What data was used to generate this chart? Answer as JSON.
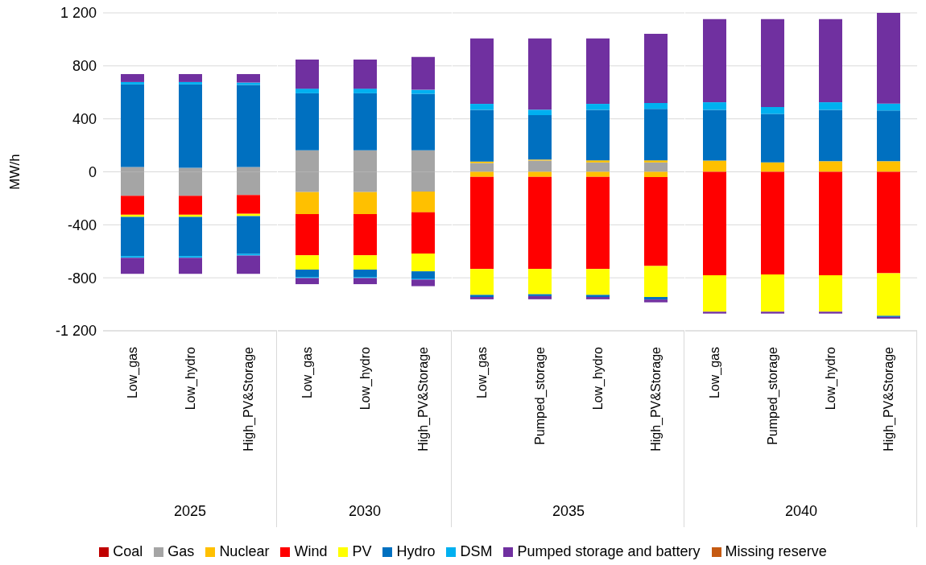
{
  "chart_data": [
    {
      "type": "bar",
      "stacked": true,
      "xlabel": "2025",
      "ylabel": "MW/h",
      "grid": "y",
      "legend": "bottom",
      "tick_labels": true,
      "ylim": [
        -1200,
        1200
      ],
      "yticks": [
        {
          "value": -1200,
          "label": "-1 200"
        },
        -800,
        -400,
        0,
        400,
        800,
        {
          "value": 1200,
          "label": "1 200"
        }
      ],
      "categories": [
        "Low_gas",
        "Low_hydro",
        "High_PV&Storage"
      ],
      "series": [
        {
          "name": "Coal",
          "color": "#c00000",
          "values": [
            null,
            null,
            null
          ]
        },
        {
          "name": "Gas",
          "color": "#a5a5a5",
          "values": [
            37,
            30,
            37
          ]
        },
        {
          "color": "#a5a5a5",
          "values": [
            -181,
            -181,
            -175
          ]
        },
        {
          "name": "Nuclear",
          "color": "#ffc000",
          "values": [
            null,
            null,
            null
          ]
        },
        {
          "name": "Wind",
          "color": "#ff0000",
          "values": [
            -143,
            -143,
            -142
          ]
        },
        {
          "name": "PV",
          "color": "#ffff00",
          "values": [
            -17,
            -17,
            -17
          ]
        },
        {
          "name": "Hydro",
          "color": "#0070c0",
          "values": [
            623,
            630,
            619
          ]
        },
        {
          "color": "#0070c0",
          "values": [
            -295,
            -295,
            -285
          ]
        },
        {
          "name": "DSM",
          "color": "#00b0f0",
          "values": [
            18,
            18,
            18
          ]
        },
        {
          "color": "#00b0f0",
          "values": [
            -13,
            -13,
            -13
          ]
        },
        {
          "name": "Pumped storage and battery",
          "color": "#7030a0",
          "values": [
            60,
            60,
            64
          ]
        },
        {
          "color": "#7030a0",
          "values": [
            -121,
            -121,
            -138
          ]
        },
        {
          "name": "Missing reserve",
          "color": "#c55a11",
          "values": [
            null,
            null,
            null
          ]
        }
      ]
    },
    {
      "type": "bar",
      "stacked": true,
      "xlabel": "2030",
      "grid": "y",
      "tick_labels": "x",
      "ylim": [
        -1200,
        1200
      ],
      "yticks": [
        -1200,
        -800,
        -400,
        0,
        400,
        800,
        1200
      ],
      "categories": [
        "Low_gas",
        "Low_hydro",
        "High_PV&Storage"
      ],
      "series": [
        {
          "color": "#a5a5a5",
          "values": [
            162,
            162,
            162
          ]
        },
        {
          "color": "#a5a5a5",
          "values": [
            -153,
            -153,
            -149
          ]
        },
        {
          "color": "#ffc000",
          "values": [
            -166,
            -166,
            -157
          ]
        },
        {
          "color": "#ff0000",
          "values": [
            -311,
            -311,
            -311
          ]
        },
        {
          "color": "#ffff00",
          "values": [
            -108,
            -108,
            -134
          ]
        },
        {
          "color": "#0070c0",
          "values": [
            431,
            431,
            427
          ]
        },
        {
          "color": "#0070c0",
          "values": [
            -56,
            -56,
            -54
          ]
        },
        {
          "color": "#00b0f0",
          "values": [
            35,
            35,
            30
          ]
        },
        {
          "color": "#00b0f0",
          "values": [
            -8,
            -8,
            -8
          ]
        },
        {
          "color": "#7030a0",
          "values": [
            220,
            220,
            248
          ]
        },
        {
          "color": "#7030a0",
          "values": [
            -46,
            -46,
            -50
          ]
        }
      ]
    },
    {
      "type": "bar",
      "stacked": true,
      "xlabel": "2035",
      "grid": "y",
      "tick_labels": "x",
      "ylim": [
        -1200,
        1200
      ],
      "yticks": [
        -1200,
        -800,
        -400,
        0,
        400,
        800,
        1200
      ],
      "categories": [
        "Low_gas",
        "Pumped_storage",
        "Low_hydro",
        "High_PV&Storage"
      ],
      "series": [
        {
          "color": "#a5a5a5",
          "values": [
            66,
            85,
            71,
            71
          ]
        },
        {
          "color": "#ffc000",
          "values": [
            12,
            7,
            16,
            16
          ]
        },
        {
          "color": "#ffc000",
          "values": [
            -38,
            -38,
            -38,
            -40
          ]
        },
        {
          "color": "#ff0000",
          "values": [
            -695,
            -695,
            -695,
            -671
          ]
        },
        {
          "color": "#ffff00",
          "values": [
            -196,
            -191,
            -196,
            -234
          ]
        },
        {
          "color": "#0070c0",
          "values": [
            390,
            336,
            381,
            388
          ]
        },
        {
          "color": "#0070c0",
          "values": [
            -16,
            -14,
            -16,
            -19
          ]
        },
        {
          "color": "#00b0f0",
          "values": [
            45,
            41,
            45,
            45
          ]
        },
        {
          "color": "#7030a0",
          "values": [
            494,
            538,
            494,
            522
          ]
        },
        {
          "color": "#7030a0",
          "values": [
            -17,
            -24,
            -17,
            -21
          ]
        }
      ]
    },
    {
      "type": "bar",
      "stacked": true,
      "xlabel": "2040",
      "grid": "y",
      "tick_labels": "x",
      "ylim": [
        -1200,
        1200
      ],
      "yticks": [
        -1200,
        -800,
        -400,
        0,
        400,
        800,
        1200
      ],
      "categories": [
        "Low_gas",
        "Pumped_storage",
        "Low_hydro",
        "High_PV&Storage"
      ],
      "series": [
        {
          "color": "#ffc000",
          "values": [
            85,
            71,
            80,
            80
          ]
        },
        {
          "color": "#ff0000",
          "values": [
            -780,
            -775,
            -780,
            -766
          ]
        },
        {
          "color": "#ffff00",
          "values": [
            -276,
            -281,
            -276,
            -321
          ]
        },
        {
          "color": "#0070c0",
          "values": [
            383,
            366,
            388,
            383
          ]
        },
        {
          "color": "#0070c0",
          "values": [
            null,
            null,
            null,
            -9
          ]
        },
        {
          "color": "#00b0f0",
          "values": [
            57,
            52,
            57,
            52
          ]
        },
        {
          "color": "#7030a0",
          "values": [
            628,
            664,
            628,
            685
          ]
        },
        {
          "color": "#7030a0",
          "values": [
            -14,
            -14,
            -14,
            -12
          ]
        }
      ]
    }
  ]
}
